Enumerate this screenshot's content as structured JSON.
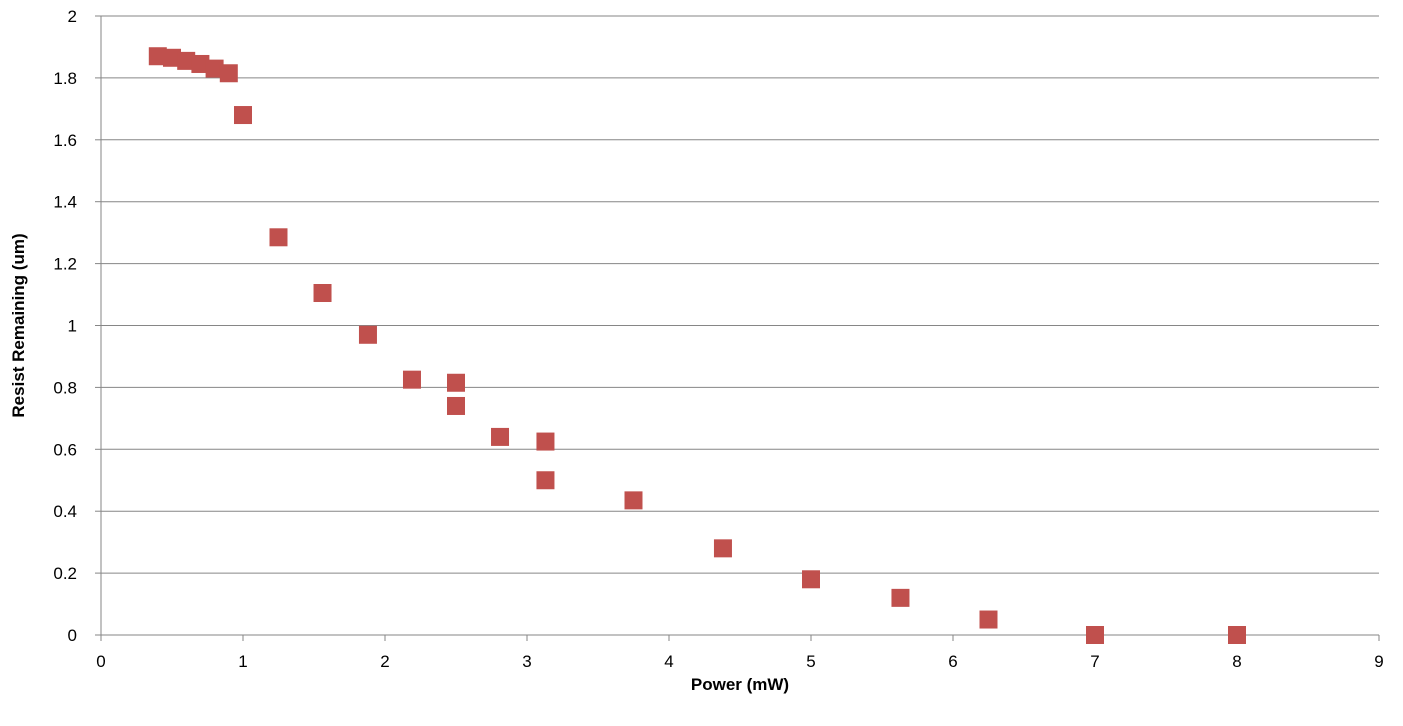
{
  "chart_data": {
    "type": "scatter",
    "title": "",
    "xlabel": "Power (mW)",
    "ylabel": "Resist  Remaining (um)",
    "xlim": [
      0,
      9
    ],
    "ylim": [
      0,
      2
    ],
    "x_ticks": [
      "0",
      "1",
      "2",
      "3",
      "4",
      "5",
      "6",
      "7",
      "8",
      "9"
    ],
    "y_ticks": [
      "0",
      "0.2",
      "0.4",
      "0.6",
      "0.8",
      "1",
      "1.2",
      "1.4",
      "1.6",
      "1.8",
      "2"
    ],
    "grid": "horizontal",
    "legend": "none",
    "marker": "square",
    "marker_color": "#c0504d",
    "series": [
      {
        "x": [
          0.4,
          0.5,
          0.6,
          0.7,
          0.8,
          0.9,
          1.0,
          1.25,
          1.56,
          1.88,
          2.19,
          2.5,
          2.5,
          2.81,
          3.13,
          3.13,
          3.75,
          4.38,
          5.0,
          5.63,
          6.25,
          7.0,
          8.0
        ],
        "y": [
          1.87,
          1.865,
          1.855,
          1.845,
          1.83,
          1.815,
          1.68,
          1.285,
          1.105,
          0.97,
          0.825,
          0.815,
          0.74,
          0.64,
          0.625,
          0.5,
          0.435,
          0.28,
          0.18,
          0.12,
          0.05,
          0.0,
          0.0
        ]
      }
    ]
  }
}
